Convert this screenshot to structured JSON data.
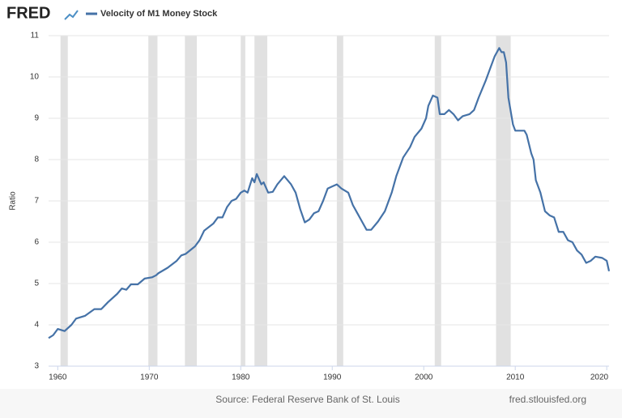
{
  "chart_data": {
    "type": "line",
    "logo": "FRED",
    "y_label": "Ratio",
    "source": "Source: Federal Reserve Bank of St. Louis",
    "site": "fred.stlouisfed.org",
    "xlim": [
      1959,
      2020.25
    ],
    "ylim": [
      3,
      11
    ],
    "xticks": [
      1960,
      1970,
      1980,
      1990,
      2000,
      2010,
      2020
    ],
    "yticks": [
      3,
      4,
      5,
      6,
      7,
      8,
      9,
      10,
      11
    ],
    "grid": true,
    "recession_color": "#e1e1e1",
    "recessions": [
      [
        1960.3,
        1961.1
      ],
      [
        1969.9,
        1970.9
      ],
      [
        1973.9,
        1975.2
      ],
      [
        1980.0,
        1980.5
      ],
      [
        1981.5,
        1982.9
      ],
      [
        1990.5,
        1991.2
      ],
      [
        2001.2,
        2001.9
      ],
      [
        2007.9,
        2009.5
      ]
    ],
    "x": [
      1959.0,
      1959.5,
      1960.0,
      1960.75,
      1961.5,
      1962.0,
      1963,
      1964,
      1964.75,
      1965.5,
      1966.5,
      1967,
      1967.5,
      1968,
      1968.75,
      1969.5,
      1970.3,
      1970.75,
      1971,
      1972,
      1973,
      1973.5,
      1974,
      1975,
      1975.5,
      1976,
      1977,
      1977.5,
      1978,
      1978.5,
      1979,
      1979.5,
      1980,
      1980.4,
      1980.75,
      1981.25,
      1981.5,
      1981.75,
      1982.25,
      1982.5,
      1983,
      1983.5,
      1984,
      1984.75,
      1985.5,
      1986,
      1986.5,
      1987,
      1987.5,
      1988,
      1988.5,
      1989,
      1989.5,
      1990,
      1990.5,
      1991,
      1991.75,
      1992.25,
      1992.75,
      1993.25,
      1993.75,
      1994.25,
      1995,
      1995.75,
      1996.5,
      1997,
      1997.75,
      1998.5,
      1999,
      1999.75,
      2000.25,
      2000.5,
      2001,
      2001.5,
      2001.75,
      2002.25,
      2002.75,
      2003.25,
      2003.75,
      2004.25,
      2005,
      2005.5,
      2006,
      2006.75,
      2007.25,
      2007.75,
      2008.25,
      2008.5,
      2008.75,
      2009,
      2009.25,
      2009.75,
      2010,
      2010.5,
      2011,
      2011.25,
      2011.75,
      2012,
      2012.25,
      2012.75,
      2013.25,
      2013.75,
      2014.25,
      2014.75,
      2015.25,
      2015.75,
      2016.25,
      2016.75,
      2017.25,
      2017.75,
      2018.25,
      2018.75,
      2019.5,
      2020,
      2020.25
    ],
    "series": [
      {
        "name": "Velocity of M1 Money Stock",
        "color": "#4572a7",
        "values": [
          3.68,
          3.75,
          3.9,
          3.85,
          4.0,
          4.15,
          4.22,
          4.38,
          4.38,
          4.55,
          4.75,
          4.88,
          4.85,
          4.98,
          4.98,
          5.12,
          5.15,
          5.2,
          5.25,
          5.38,
          5.55,
          5.68,
          5.72,
          5.9,
          6.05,
          6.28,
          6.45,
          6.6,
          6.6,
          6.85,
          7.0,
          7.05,
          7.2,
          7.25,
          7.2,
          7.55,
          7.45,
          7.65,
          7.4,
          7.45,
          7.2,
          7.22,
          7.4,
          7.6,
          7.4,
          7.2,
          6.8,
          6.48,
          6.55,
          6.7,
          6.75,
          7.0,
          7.3,
          7.35,
          7.4,
          7.3,
          7.2,
          6.9,
          6.7,
          6.5,
          6.3,
          6.3,
          6.5,
          6.75,
          7.2,
          7.6,
          8.05,
          8.3,
          8.55,
          8.75,
          9.0,
          9.3,
          9.55,
          9.5,
          9.1,
          9.1,
          9.2,
          9.1,
          8.95,
          9.05,
          9.1,
          9.2,
          9.5,
          9.9,
          10.2,
          10.5,
          10.7,
          10.6,
          10.6,
          10.35,
          9.5,
          8.85,
          8.7,
          8.7,
          8.7,
          8.6,
          8.15,
          8.0,
          7.5,
          7.2,
          6.75,
          6.65,
          6.6,
          6.25,
          6.25,
          6.05,
          6.0,
          5.8,
          5.7,
          5.5,
          5.55,
          5.65,
          5.62,
          5.55,
          5.3
        ]
      }
    ]
  }
}
